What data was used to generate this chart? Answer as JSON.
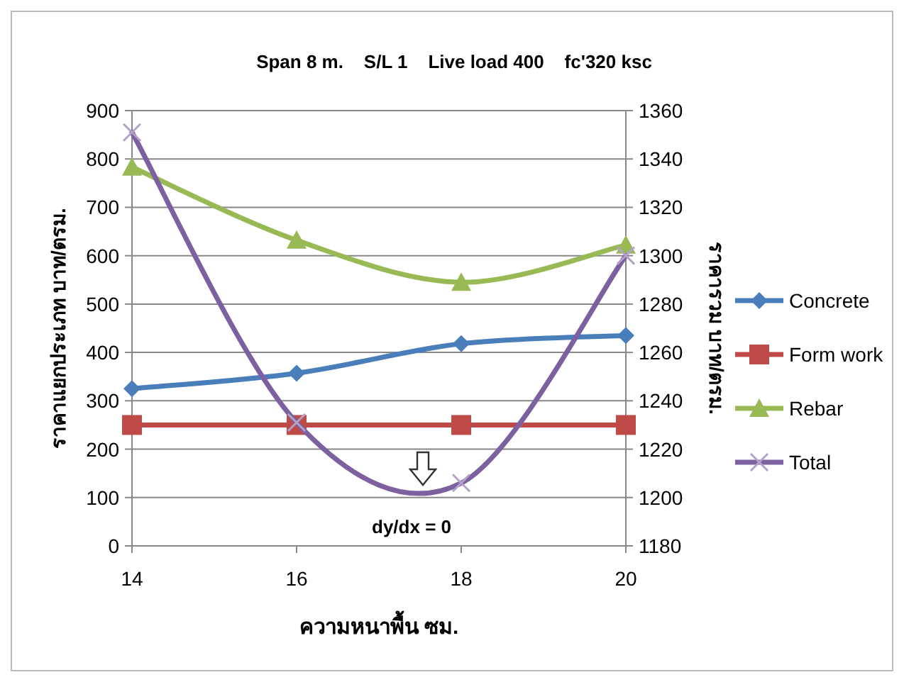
{
  "chart_data": {
    "type": "line",
    "title": "Span 8 m.    S/L 1    Live load 400    fc'320 ksc",
    "xlabel": "ความหนาพื้น ซม.",
    "ylabel": "ราคาแยกประเภท  บาท/ตรม.",
    "y2label": "ราคารวม บาท/ตรม.",
    "x": [
      14,
      16,
      18,
      20
    ],
    "series": [
      {
        "name": "Concrete",
        "color": "#4a7ebb",
        "marker": "diamond",
        "values": [
          325,
          357,
          418,
          435
        ]
      },
      {
        "name": "Form work",
        "color": "#be4b48",
        "marker": "square",
        "values": [
          250,
          250,
          250,
          250
        ]
      },
      {
        "name": "Rebar",
        "color": "#98b954",
        "marker": "triangle",
        "values": [
          783,
          632,
          545,
          622
        ]
      },
      {
        "name": "Total",
        "color": "#7d60a0",
        "marker": "cross",
        "axis": "y2",
        "values": [
          1351,
          1231,
          1206,
          1300
        ]
      }
    ],
    "xlim": [
      14,
      20
    ],
    "xticks": [
      14,
      16,
      18,
      20
    ],
    "ylim": [
      0,
      900
    ],
    "yticks": [
      0,
      100,
      200,
      300,
      400,
      500,
      600,
      700,
      800,
      900
    ],
    "y2lim": [
      1180,
      1360
    ],
    "y2ticks": [
      1180,
      1200,
      1220,
      1240,
      1260,
      1280,
      1300,
      1320,
      1340,
      1360
    ],
    "grid": "y",
    "legend": "right",
    "line_style": "solid",
    "annotations": [
      "dy/dx = 0"
    ]
  }
}
